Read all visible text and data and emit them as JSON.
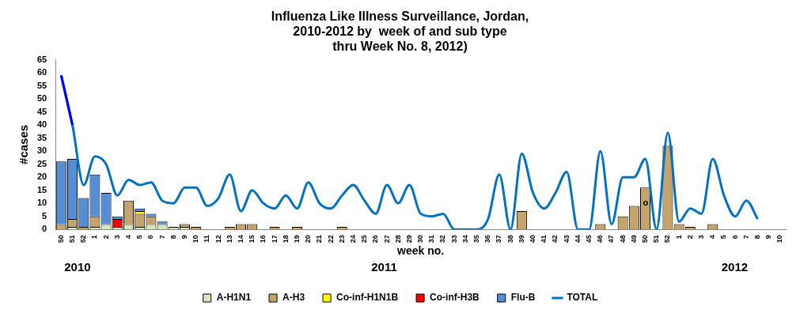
{
  "chart_data": {
    "type": "bar",
    "stacked": true,
    "title": "Influenza Like Illness Surveillance, Jordan,\n2010-2012 by  week of and sub type\nthru Week No. 8, 2012)",
    "xlabel": "week no.",
    "ylabel": "#cases",
    "categories": [
      "50",
      "51",
      "52",
      "1",
      "2",
      "3",
      "4",
      "5",
      "6",
      "7",
      "8",
      "9",
      "10",
      "11",
      "12",
      "13",
      "14",
      "15",
      "16",
      "17",
      "18",
      "19",
      "20",
      "21",
      "22",
      "23",
      "24",
      "25",
      "26",
      "27",
      "28",
      "29",
      "30",
      "31",
      "32",
      "33",
      "34",
      "35",
      "36",
      "37",
      "38",
      "39",
      "40",
      "41",
      "42",
      "43",
      "44",
      "45",
      "46",
      "47",
      "48",
      "49",
      "50",
      "51",
      "52",
      "1",
      "2",
      "3",
      "4",
      "5",
      "6",
      "7",
      "8",
      "9",
      "10"
    ],
    "series": [
      {
        "name": "A-H1N1",
        "color": "#d8e4bc",
        "values": [
          null,
          1,
          null,
          1,
          2,
          1,
          2,
          1,
          2,
          2,
          1,
          1,
          null,
          null,
          null,
          null,
          null,
          null,
          null,
          null,
          null,
          null,
          null,
          null,
          null,
          null,
          null,
          null,
          null,
          null,
          null,
          null,
          null,
          null,
          null,
          null,
          null,
          null,
          null,
          null,
          null,
          null,
          null,
          null,
          null,
          null,
          null,
          null,
          null,
          null,
          null,
          null,
          null,
          null,
          null,
          null,
          null,
          null,
          null,
          null,
          null,
          null,
          null,
          null,
          null
        ]
      },
      {
        "name": "A-H3",
        "color": "#c4a46c",
        "values": [
          2,
          3,
          1,
          4,
          null,
          null,
          9,
          5,
          3,
          null,
          null,
          1,
          1,
          null,
          null,
          1,
          2,
          2,
          null,
          1,
          null,
          1,
          null,
          null,
          null,
          1,
          null,
          null,
          null,
          null,
          null,
          null,
          null,
          null,
          null,
          null,
          null,
          null,
          null,
          null,
          null,
          7,
          null,
          null,
          null,
          null,
          null,
          null,
          2,
          null,
          5,
          9,
          16,
          null,
          32,
          2,
          1,
          null,
          2,
          null,
          null,
          null,
          null,
          null,
          null
        ]
      },
      {
        "name": "Co-inf-H1N1B",
        "color": "#ffff00",
        "values": [
          null,
          null,
          null,
          null,
          null,
          null,
          null,
          1,
          null,
          null,
          null,
          null,
          null,
          null,
          null,
          null,
          null,
          null,
          null,
          null,
          null,
          null,
          null,
          null,
          null,
          null,
          null,
          null,
          null,
          null,
          null,
          null,
          null,
          null,
          null,
          null,
          null,
          null,
          null,
          null,
          null,
          null,
          null,
          null,
          null,
          null,
          null,
          null,
          null,
          null,
          null,
          null,
          null,
          null,
          null,
          null,
          null,
          null,
          null,
          null,
          null,
          null,
          null,
          null,
          null
        ]
      },
      {
        "name": "Co-inf-H3B",
        "color": "#ff0000",
        "values": [
          null,
          null,
          null,
          null,
          null,
          3,
          null,
          null,
          null,
          null,
          null,
          null,
          null,
          null,
          null,
          null,
          null,
          null,
          null,
          null,
          null,
          null,
          null,
          null,
          null,
          null,
          null,
          null,
          null,
          null,
          null,
          null,
          null,
          null,
          null,
          null,
          null,
          null,
          null,
          null,
          null,
          null,
          null,
          null,
          null,
          null,
          null,
          null,
          null,
          null,
          null,
          null,
          null,
          null,
          null,
          null,
          null,
          null,
          null,
          null,
          null,
          null,
          null,
          null,
          null
        ]
      },
      {
        "name": "Flu-B",
        "color": "#558ed5",
        "values": [
          24,
          23,
          11,
          16,
          12,
          1,
          null,
          1,
          1,
          1,
          null,
          null,
          null,
          null,
          null,
          null,
          null,
          null,
          null,
          null,
          null,
          null,
          null,
          null,
          null,
          null,
          null,
          null,
          null,
          null,
          null,
          null,
          null,
          null,
          null,
          null,
          null,
          null,
          null,
          null,
          null,
          null,
          null,
          null,
          null,
          null,
          null,
          null,
          null,
          null,
          null,
          null,
          null,
          null,
          null,
          null,
          null,
          null,
          null,
          null,
          null,
          null,
          null,
          null,
          null
        ]
      },
      {
        "name": "TOTAL",
        "type": "line",
        "color": "#0070c0",
        "values": [
          59,
          40,
          17,
          28,
          25,
          13,
          19,
          17,
          18,
          11,
          10,
          16,
          16,
          9,
          12,
          21,
          7,
          15,
          10,
          8,
          13,
          8,
          18,
          10,
          8,
          13,
          17,
          11,
          6,
          17,
          10,
          17,
          6,
          5,
          6,
          0,
          0,
          0,
          4,
          21,
          0,
          29,
          14,
          8,
          14,
          22,
          0,
          0,
          30,
          2,
          20,
          20,
          27,
          0,
          37,
          3,
          8,
          6,
          27,
          13,
          5,
          11,
          4,
          null,
          null
        ]
      },
      {
        "type": "line",
        "color": "#0000ff",
        "values": [
          59,
          40,
          null,
          null,
          null,
          null,
          null,
          null,
          null,
          null,
          null,
          null,
          null,
          null,
          null,
          null,
          null,
          null,
          null,
          null,
          null,
          null,
          null,
          null,
          null,
          null,
          null,
          null,
          null,
          null,
          null,
          null,
          null,
          null,
          null,
          null,
          null,
          null,
          null,
          null,
          null,
          null,
          null,
          null,
          null,
          null,
          null,
          null,
          null,
          null,
          null,
          null,
          null,
          null,
          null,
          null,
          null,
          null,
          null,
          null,
          null,
          null,
          null,
          null,
          null
        ]
      }
    ],
    "ylim": [
      0,
      65
    ],
    "yticks": [
      0,
      5,
      10,
      15,
      20,
      25,
      30,
      35,
      40,
      45,
      50,
      55,
      60,
      65
    ],
    "grid": false,
    "legend": "bottom",
    "marker": "none",
    "line_style": "solid",
    "annotations": [
      "2010",
      "2011",
      "2012",
      "o"
    ]
  }
}
